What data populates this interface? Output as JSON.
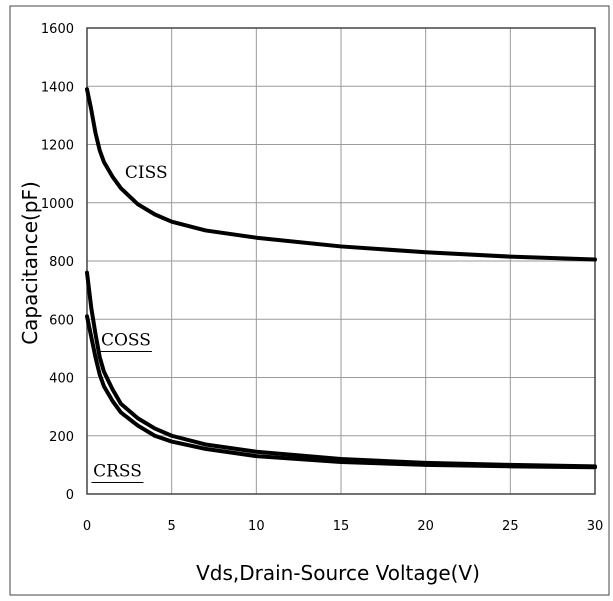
{
  "chart_data": {
    "type": "line",
    "title": "",
    "xlabel": "Vds,Drain-Source Voltage(V)",
    "ylabel": "Capacitance(pF)",
    "xlim": [
      0,
      30
    ],
    "ylim": [
      0,
      1600
    ],
    "x_ticks": [
      0,
      5,
      10,
      15,
      20,
      25,
      30
    ],
    "y_ticks": [
      0,
      200,
      400,
      600,
      800,
      1000,
      1200,
      1400,
      1600
    ],
    "grid": true,
    "legend": "none",
    "line_color": "#000000",
    "series": [
      {
        "name": "CISS",
        "x": [
          0,
          0.25,
          0.5,
          0.75,
          1,
          1.5,
          2,
          3,
          4,
          5,
          7,
          10,
          15,
          20,
          25,
          30
        ],
        "y": [
          1390,
          1320,
          1240,
          1180,
          1140,
          1090,
          1050,
          995,
          960,
          935,
          905,
          880,
          850,
          830,
          815,
          805
        ]
      },
      {
        "name": "COSS",
        "x": [
          0,
          0.25,
          0.5,
          0.75,
          1,
          1.5,
          2,
          3,
          4,
          5,
          7,
          10,
          15,
          20,
          25,
          30
        ],
        "y": [
          760,
          640,
          550,
          470,
          420,
          360,
          310,
          260,
          225,
          200,
          170,
          145,
          120,
          107,
          100,
          95
        ]
      },
      {
        "name": "CRSS",
        "x": [
          0,
          0.25,
          0.5,
          0.75,
          1,
          1.5,
          2,
          3,
          4,
          5,
          7,
          10,
          15,
          20,
          25,
          30
        ],
        "y": [
          610,
          540,
          470,
          410,
          370,
          320,
          280,
          235,
          200,
          180,
          155,
          130,
          110,
          100,
          95,
          92
        ]
      }
    ],
    "annotations": [
      {
        "text": "CISS",
        "series": "CISS"
      },
      {
        "text": "COSS",
        "series": "COSS"
      },
      {
        "text": "CRSS",
        "series": "CRSS"
      }
    ]
  }
}
